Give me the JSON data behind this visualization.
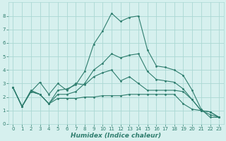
{
  "xlabel": "Humidex (Indice chaleur)",
  "x": [
    0,
    1,
    2,
    3,
    4,
    5,
    6,
    7,
    8,
    9,
    10,
    11,
    12,
    13,
    14,
    15,
    16,
    17,
    18,
    19,
    20,
    21,
    22,
    23
  ],
  "line_max": [
    2.7,
    1.3,
    2.5,
    2.2,
    1.5,
    2.5,
    2.6,
    2.9,
    3.9,
    5.9,
    6.9,
    8.2,
    7.6,
    7.9,
    8.0,
    5.5,
    4.3,
    4.2,
    4.0,
    3.6,
    2.5,
    1.1,
    0.5,
    0.5
  ],
  "line_min": [
    2.7,
    1.3,
    2.4,
    2.2,
    1.5,
    1.9,
    1.9,
    1.9,
    2.0,
    2.0,
    2.1,
    2.1,
    2.1,
    2.2,
    2.2,
    2.2,
    2.2,
    2.2,
    2.2,
    1.5,
    1.1,
    1.0,
    0.9,
    0.5
  ],
  "line_mean": [
    2.7,
    1.3,
    2.4,
    2.2,
    1.5,
    2.2,
    2.2,
    2.4,
    3.0,
    4.0,
    4.5,
    5.2,
    4.9,
    5.1,
    5.2,
    3.9,
    3.3,
    3.2,
    3.1,
    2.6,
    1.8,
    1.0,
    0.7,
    0.5
  ],
  "line_wiggly": [
    2.7,
    1.3,
    2.4,
    3.1,
    2.2,
    3.0,
    2.5,
    3.0,
    2.9,
    3.5,
    3.8,
    4.0,
    3.2,
    3.5,
    3.0,
    2.5,
    2.5,
    2.5,
    2.5,
    2.4,
    1.8,
    1.0,
    0.9,
    0.5
  ],
  "color": "#2e7d6e",
  "bg_color": "#d6f0ee",
  "grid_color": "#aad8d3",
  "ylim": [
    0,
    9
  ],
  "xlim": [
    -0.5,
    23.5
  ],
  "yticks": [
    0,
    1,
    2,
    3,
    4,
    5,
    6,
    7,
    8
  ],
  "xticks": [
    0,
    1,
    2,
    3,
    4,
    5,
    6,
    7,
    8,
    9,
    10,
    11,
    12,
    13,
    14,
    15,
    16,
    17,
    18,
    19,
    20,
    21,
    22,
    23
  ],
  "marker_size": 2.0,
  "line_width": 0.8,
  "tick_fontsize": 5.0,
  "xlabel_fontsize": 6.5
}
